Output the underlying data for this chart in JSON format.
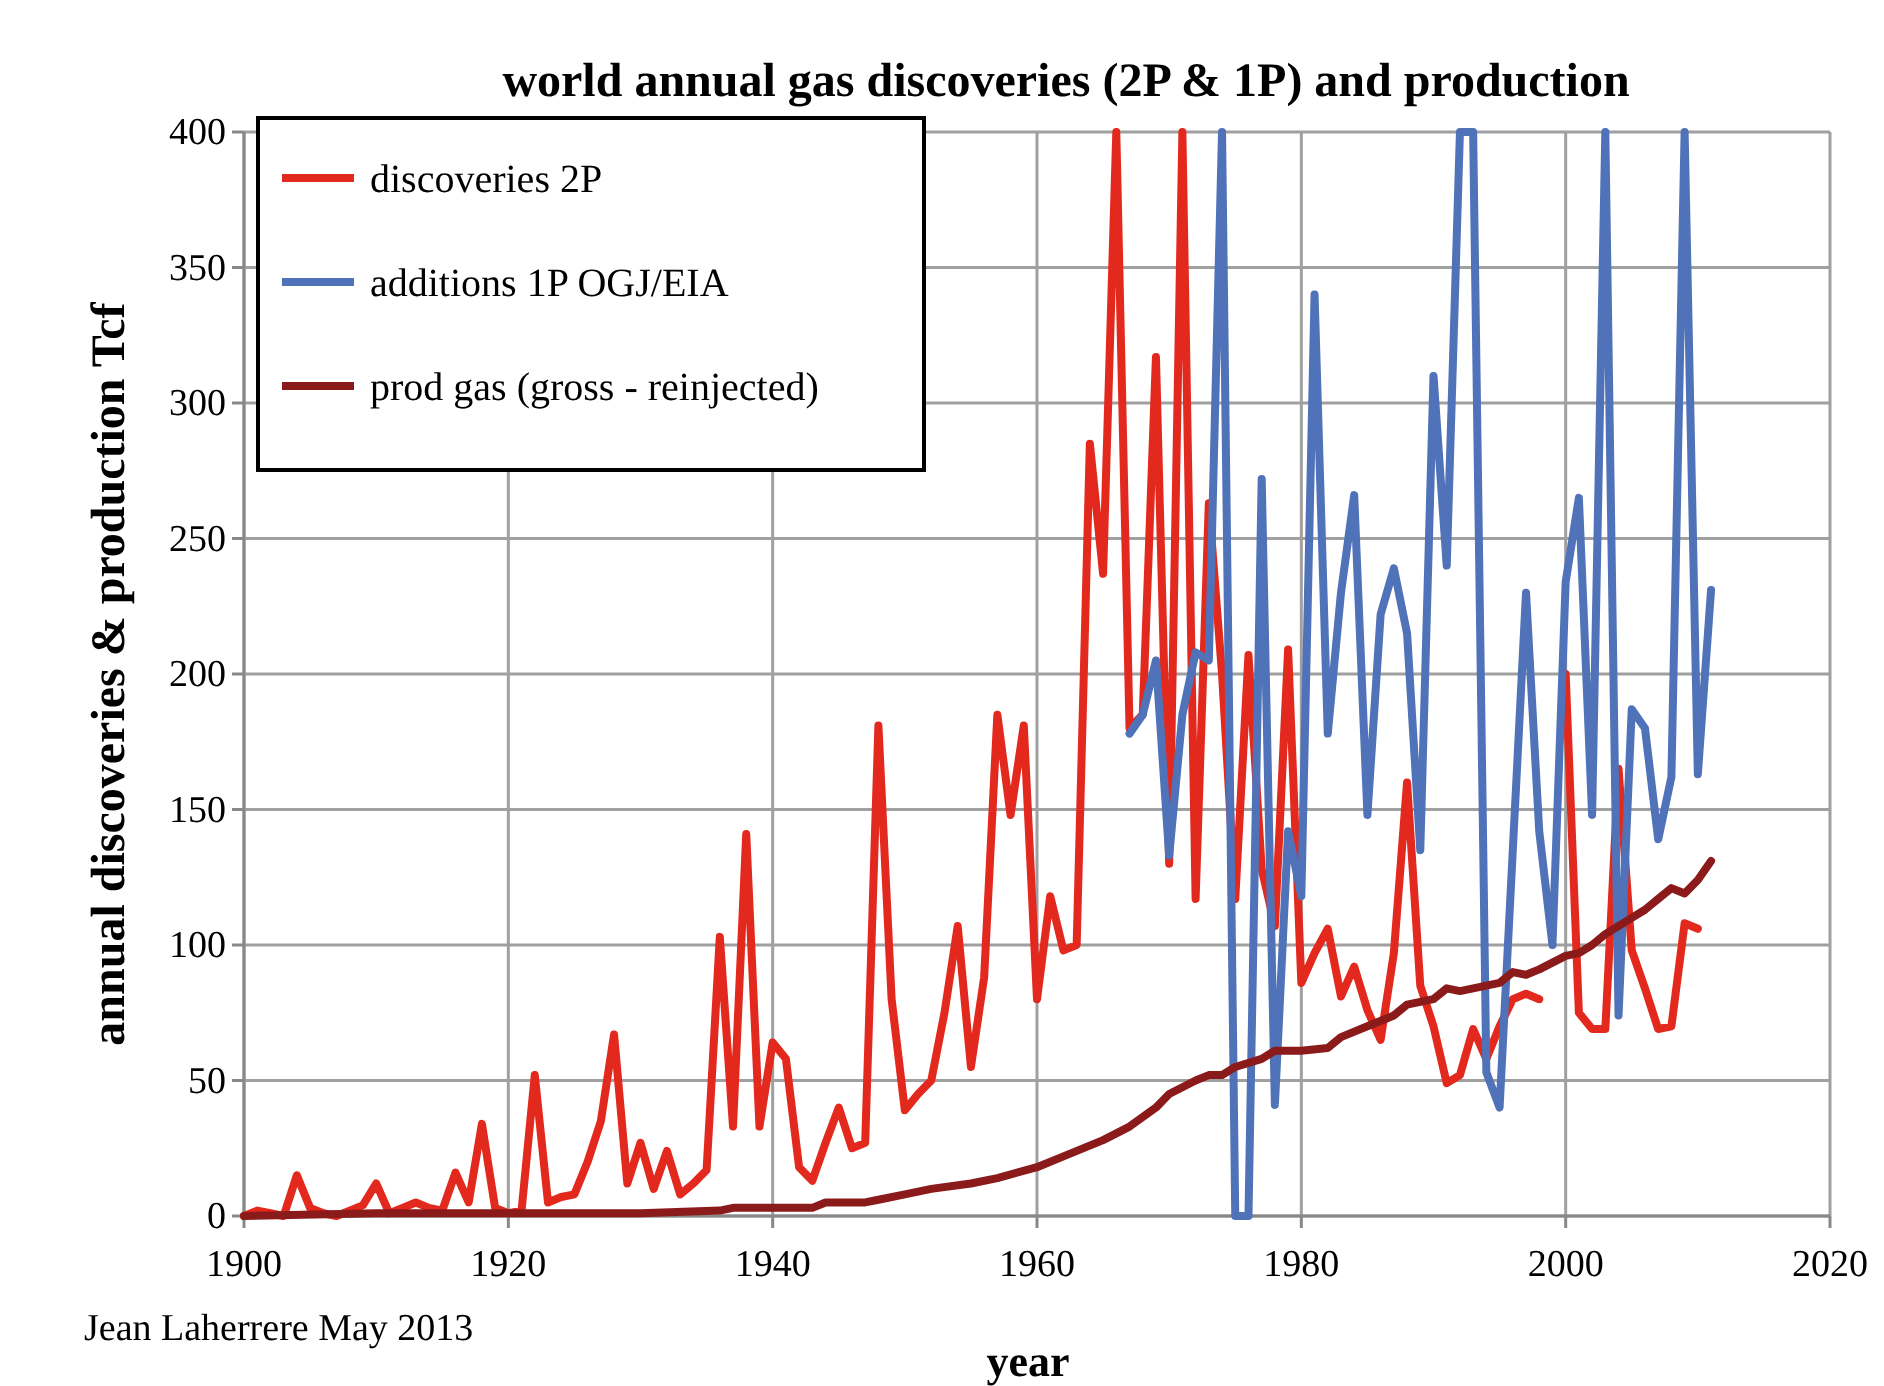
{
  "chart_data": {
    "type": "line",
    "title": "world annual gas discoveries (2P & 1P) and production",
    "xlabel": "year",
    "ylabel": "annual discoveries & production Tcf",
    "annotations": [
      "Jean Laherrere May 2013"
    ],
    "xlim": [
      1900,
      2020
    ],
    "xticks": [
      1900,
      1920,
      1940,
      1960,
      1980,
      2000,
      2020
    ],
    "ylim": [
      0,
      400
    ],
    "yticks": [
      0,
      50,
      100,
      150,
      200,
      250,
      300,
      350,
      400
    ],
    "grid": true,
    "legend": "top left",
    "marker": "none",
    "line_style": "solid",
    "series": [
      {
        "name": "discoveries 2P",
        "color": "#e3291e",
        "x": [
          1900,
          1901,
          1902,
          1903,
          1904,
          1905,
          1906,
          1907,
          1908,
          1909,
          1910,
          1911,
          1912,
          1913,
          1914,
          1915,
          1916,
          1917,
          1918,
          1919,
          1920,
          1921,
          1922,
          1923,
          1924,
          1925,
          1926,
          1927,
          1928,
          1929,
          1930,
          1931,
          1932,
          1933,
          1934,
          1935,
          1936,
          1937,
          1938,
          1939,
          1940,
          1941,
          1942,
          1943,
          1944,
          1945,
          1946,
          1947,
          1948,
          1949,
          1950,
          1951,
          1952,
          1953,
          1954,
          1955,
          1956,
          1957,
          1958,
          1959,
          1960,
          1961,
          1962,
          1963,
          1964,
          1965,
          1966,
          1967,
          1968,
          1969,
          1970,
          1971,
          1972,
          1973,
          1974,
          1975,
          1976,
          1977,
          1978,
          1979,
          1980,
          1981,
          1982,
          1983,
          1984,
          1985,
          1986,
          1987,
          1988,
          1989,
          1990,
          1991,
          1992,
          1993,
          1994,
          1995,
          1996,
          1997,
          1998,
          1999,
          2000,
          2001,
          2002,
          2003,
          2004,
          2005,
          2006,
          2007,
          2008,
          2009,
          2010
        ],
        "values": [
          0,
          2,
          1,
          0,
          15,
          3,
          1,
          0,
          2,
          4,
          12,
          1,
          3,
          5,
          3,
          2,
          16,
          5,
          34,
          3,
          1,
          2,
          52,
          5,
          7,
          8,
          20,
          35,
          67,
          12,
          27,
          10,
          24,
          8,
          12,
          17,
          103,
          33,
          141,
          33,
          64,
          58,
          18,
          13,
          27,
          40,
          25,
          27,
          181,
          80,
          39,
          45,
          50,
          75,
          107,
          55,
          88,
          185,
          148,
          181,
          80,
          118,
          98,
          100,
          285,
          237,
          400,
          180,
          185,
          317,
          130,
          400,
          117,
          263,
          200,
          117,
          207,
          128,
          107,
          209,
          86,
          97,
          106,
          81,
          92,
          76,
          65,
          97,
          160,
          85,
          70,
          49,
          52,
          69,
          58,
          70,
          80,
          82,
          80,
          null,
          200,
          75,
          69,
          69,
          165,
          98,
          84,
          69,
          70,
          108,
          106
        ]
      },
      {
        "name": "additions 1P OGJ/EIA",
        "color": "#4f72b8",
        "x": [
          1967,
          1968,
          1969,
          1970,
          1971,
          1972,
          1973,
          1974,
          1975,
          1976,
          1977,
          1978,
          1979,
          1980,
          1981,
          1982,
          1983,
          1984,
          1985,
          1986,
          1987,
          1988,
          1989,
          1990,
          1991,
          1992,
          1993,
          1994,
          1995,
          1996,
          1997,
          1998,
          1999,
          2000,
          2001,
          2002,
          2003,
          2004,
          2005,
          2006,
          2007,
          2008,
          2009,
          2010,
          2011
        ],
        "values": [
          178,
          185,
          205,
          133,
          185,
          208,
          205,
          400,
          0,
          0,
          272,
          41,
          142,
          118,
          340,
          178,
          230,
          266,
          148,
          222,
          239,
          215,
          135,
          310,
          240,
          400,
          400,
          53,
          40,
          135,
          230,
          142,
          100,
          234,
          265,
          148,
          400,
          74,
          187,
          180,
          139,
          162,
          400,
          163,
          231
        ]
      },
      {
        "name": "prod gas (gross - reinjected)",
        "color": "#8b1a1a",
        "x": [
          1900,
          1910,
          1920,
          1930,
          1936,
          1937,
          1943,
          1944,
          1947,
          1948,
          1950,
          1952,
          1955,
          1957,
          1960,
          1962,
          1965,
          1967,
          1969,
          1970,
          1972,
          1973,
          1974,
          1975,
          1977,
          1978,
          1980,
          1982,
          1983,
          1985,
          1987,
          1988,
          1990,
          1991,
          1992,
          1993,
          1995,
          1996,
          1997,
          1998,
          2000,
          2001,
          2002,
          2003,
          2005,
          2006,
          2007,
          2008,
          2009,
          2010,
          2011
        ],
        "values": [
          0,
          1,
          1,
          1,
          2,
          3,
          3,
          5,
          5,
          6,
          8,
          10,
          12,
          14,
          18,
          22,
          28,
          33,
          40,
          45,
          50,
          52,
          52,
          55,
          58,
          61,
          61,
          62,
          66,
          70,
          74,
          78,
          80,
          84,
          83,
          84,
          86,
          90,
          89,
          91,
          96,
          97,
          100,
          104,
          110,
          113,
          117,
          121,
          119,
          124,
          131
        ]
      }
    ]
  }
}
